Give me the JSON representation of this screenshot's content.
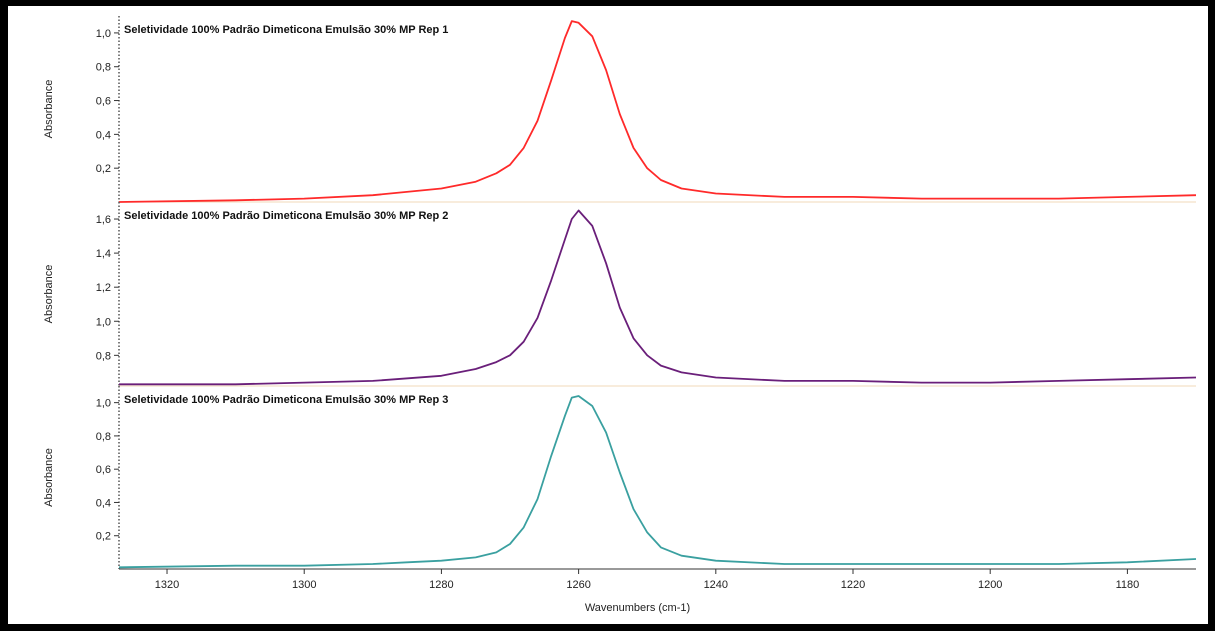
{
  "chart_data": [
    {
      "type": "line",
      "title": "Seletividade 100% Padrão Dimeticona Emulsão 30% MP Rep 1",
      "ylabel": "Absorbance",
      "yticks": [
        "1,0",
        "0,8",
        "0,6",
        "0,4",
        "0,2"
      ],
      "ytick_values": [
        1.0,
        0.8,
        0.6,
        0.4,
        0.2
      ],
      "ylim": [
        0.0,
        1.1
      ],
      "series": [
        {
          "color": "#ff2a2a",
          "x": [
            1327,
            1310,
            1300,
            1290,
            1280,
            1275,
            1272,
            1270,
            1268,
            1266,
            1264,
            1262,
            1261,
            1260,
            1258,
            1256,
            1254,
            1252,
            1250,
            1248,
            1245,
            1240,
            1230,
            1220,
            1210,
            1200,
            1190,
            1180,
            1170
          ],
          "y": [
            0.0,
            0.01,
            0.02,
            0.04,
            0.08,
            0.12,
            0.17,
            0.22,
            0.32,
            0.48,
            0.72,
            0.97,
            1.07,
            1.06,
            0.98,
            0.78,
            0.52,
            0.32,
            0.2,
            0.13,
            0.08,
            0.05,
            0.03,
            0.03,
            0.02,
            0.02,
            0.02,
            0.03,
            0.04
          ]
        }
      ]
    },
    {
      "type": "line",
      "title": "Seletividade 100% Padrão Dimeticona Emulsão 30% MP Rep 2",
      "ylabel": "Absorbance",
      "yticks": [
        "1,6",
        "1,4",
        "1,2",
        "1,0",
        "0,8"
      ],
      "ytick_values": [
        1.6,
        1.4,
        1.2,
        1.0,
        0.8
      ],
      "ylim": [
        0.62,
        1.7
      ],
      "series": [
        {
          "color": "#6a1f7a",
          "x": [
            1327,
            1310,
            1300,
            1290,
            1280,
            1275,
            1272,
            1270,
            1268,
            1266,
            1264,
            1262,
            1261,
            1260,
            1258,
            1256,
            1254,
            1252,
            1250,
            1248,
            1245,
            1240,
            1230,
            1220,
            1210,
            1200,
            1190,
            1180,
            1170
          ],
          "y": [
            0.63,
            0.63,
            0.64,
            0.65,
            0.68,
            0.72,
            0.76,
            0.8,
            0.88,
            1.02,
            1.24,
            1.48,
            1.6,
            1.65,
            1.56,
            1.34,
            1.08,
            0.9,
            0.8,
            0.74,
            0.7,
            0.67,
            0.65,
            0.65,
            0.64,
            0.64,
            0.65,
            0.66,
            0.67
          ]
        }
      ]
    },
    {
      "type": "line",
      "title": "Seletividade 100% Padrão Dimeticona Emulsão 30% MP Rep 3",
      "ylabel": "Absorbance",
      "yticks": [
        "1,0",
        "0,8",
        "0,6",
        "0,4",
        "0,2"
      ],
      "ytick_values": [
        1.0,
        0.8,
        0.6,
        0.4,
        0.2
      ],
      "ylim": [
        0.0,
        1.1
      ],
      "xlabel": "Wavenumbers (cm-1)",
      "xticks": [
        "1320",
        "1300",
        "1280",
        "1260",
        "1240",
        "1220",
        "1200",
        "1180"
      ],
      "xtick_values": [
        1320,
        1300,
        1280,
        1260,
        1240,
        1220,
        1200,
        1180
      ],
      "xlim": [
        1327,
        1170
      ],
      "series": [
        {
          "color": "#3aa0a0",
          "x": [
            1327,
            1310,
            1300,
            1290,
            1285,
            1280,
            1275,
            1272,
            1270,
            1268,
            1266,
            1264,
            1262,
            1261,
            1260,
            1258,
            1256,
            1254,
            1252,
            1250,
            1248,
            1245,
            1240,
            1230,
            1220,
            1210,
            1200,
            1190,
            1180,
            1170
          ],
          "y": [
            0.01,
            0.02,
            0.02,
            0.03,
            0.04,
            0.05,
            0.07,
            0.1,
            0.15,
            0.25,
            0.42,
            0.68,
            0.92,
            1.03,
            1.04,
            0.98,
            0.82,
            0.58,
            0.36,
            0.22,
            0.13,
            0.08,
            0.05,
            0.03,
            0.03,
            0.03,
            0.03,
            0.03,
            0.04,
            0.06
          ]
        }
      ]
    }
  ]
}
